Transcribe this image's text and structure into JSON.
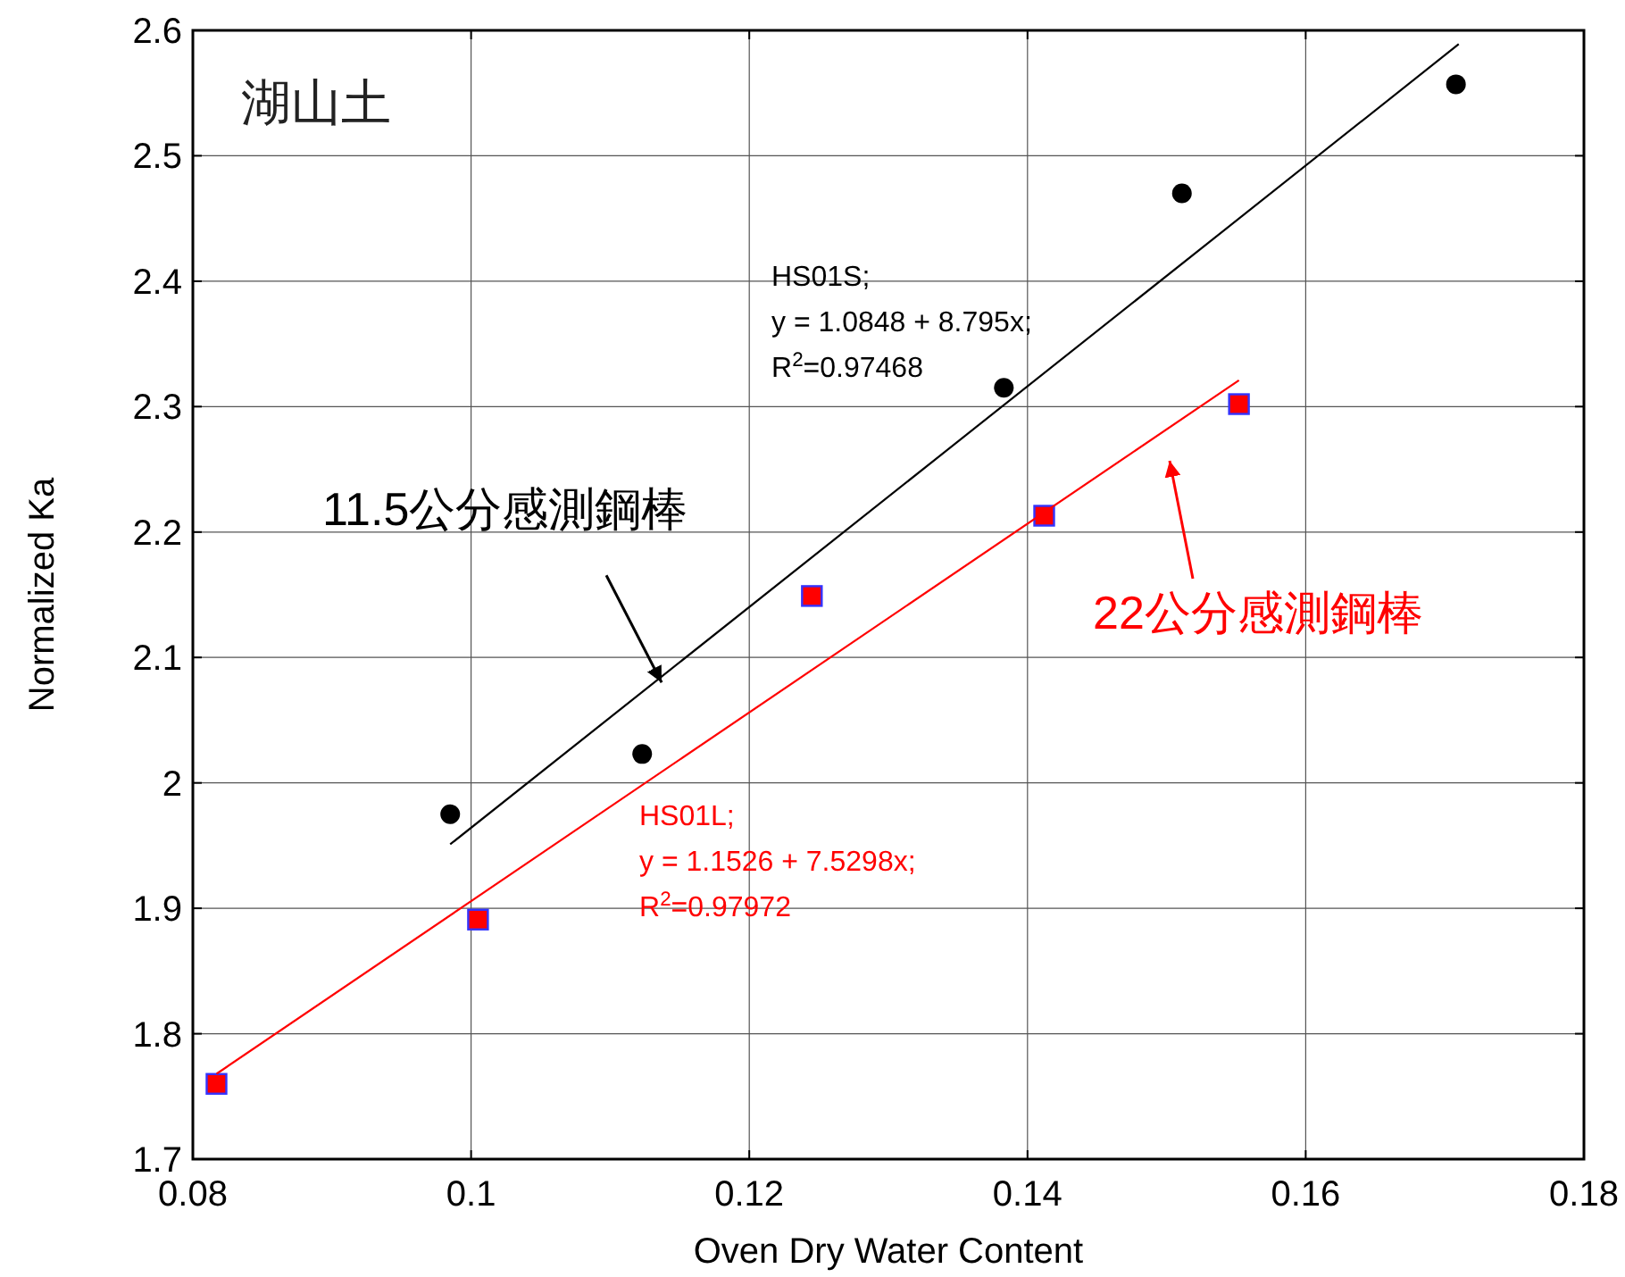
{
  "chart_data": {
    "type": "scatter",
    "xlabel": "Oven Dry Water Content",
    "ylabel": "Normalized Ka",
    "xlim": [
      0.08,
      0.18
    ],
    "xticks": [
      0.08,
      0.1,
      0.12,
      0.14,
      0.16,
      0.18
    ],
    "ylim": [
      1.7,
      2.6
    ],
    "yticks": [
      1.7,
      1.8,
      1.9,
      2,
      2.1,
      2.2,
      2.3,
      2.4,
      2.5,
      2.6
    ],
    "grid": true,
    "series": [
      {
        "color": "#000000",
        "marker": "circle",
        "x": [
          0.0985,
          0.1123,
          0.1383,
          0.1511,
          0.1708
        ],
        "values": [
          1.975,
          2.023,
          2.315,
          2.47,
          2.557
        ]
      },
      {
        "color": "#ff0000",
        "marker": "square",
        "x": [
          0.0817,
          0.1005,
          0.1245,
          0.1412,
          0.1552
        ],
        "values": [
          1.76,
          1.891,
          2.149,
          2.213,
          2.302
        ]
      },
      {
        "type": "line",
        "color": "#000000",
        "marker": "none",
        "line_style": "solid",
        "x": [
          0.0985,
          0.171
        ],
        "values": [
          1.951,
          2.589
        ]
      },
      {
        "type": "line",
        "color": "#ff0000",
        "marker": "none",
        "line_style": "solid",
        "x": [
          0.0817,
          0.1552
        ],
        "values": [
          1.768,
          2.321
        ]
      }
    ],
    "annotations": [
      "湖山土",
      "HS01S;\ny = 1.0848 + 8.795x;\nR$^{2}$=0.97468",
      {
        "text": "11.5公分感測鋼棒",
        "x": 0.1137,
        "y": 2.08
      },
      "22公分感測鋼棒",
      "HS01L;\ny = 1.1526 + 7.5298x;\nR$^{2}$=0.97972"
    ]
  }
}
